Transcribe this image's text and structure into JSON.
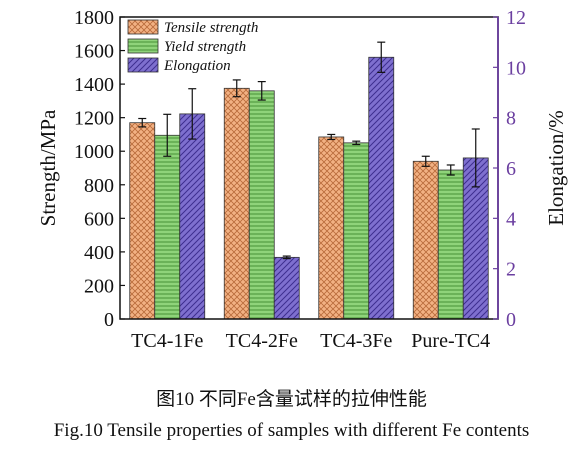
{
  "chart_data": {
    "type": "bar",
    "categories": [
      "TC4-1Fe",
      "TC4-2Fe",
      "TC4-3Fe",
      "Pure-TC4"
    ],
    "ylabel": "Strength/MPa",
    "y2label": "Elongation/%",
    "ylim": [
      0,
      1800
    ],
    "y2lim": [
      0,
      12
    ],
    "yticks": [
      "0",
      "200",
      "400",
      "600",
      "800",
      "1000",
      "1200",
      "1400",
      "1600",
      "1800"
    ],
    "y2ticks": [
      "0",
      "2",
      "4",
      "6",
      "8",
      "10",
      "12"
    ],
    "legend_position": "top-left",
    "series": [
      {
        "name": "Tensile strength",
        "axis": "left",
        "values": [
          1170,
          1375,
          1085,
          940
        ],
        "errors": [
          25,
          50,
          15,
          30
        ],
        "color": "#f2b183",
        "pattern": "crosshatch"
      },
      {
        "name": "Yield strength",
        "axis": "left",
        "values": [
          1095,
          1360,
          1050,
          888
        ],
        "errors": [
          125,
          55,
          10,
          30
        ],
        "color": "#8fd37a",
        "pattern": "horizontal-lines"
      },
      {
        "name": "Elongation",
        "axis": "right",
        "values": [
          8.15,
          2.45,
          10.4,
          6.4
        ],
        "errors": [
          1.0,
          0.05,
          0.6,
          1.15
        ],
        "color": "#7e6fcf",
        "pattern": "diagonal-lines"
      }
    ]
  },
  "captions": {
    "zh": "图10  不同Fe含量试样的拉伸性能",
    "en": "Fig.10  Tensile properties of samples with different Fe contents"
  },
  "colors": {
    "right_axis": "#6b3fa0",
    "frame": "#111111"
  }
}
